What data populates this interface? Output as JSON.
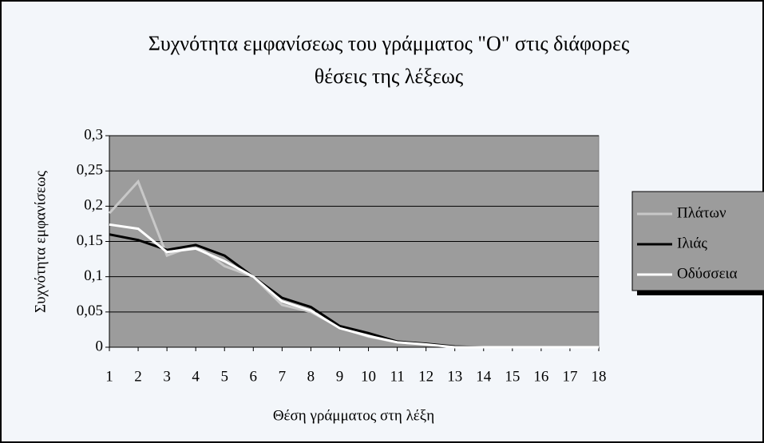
{
  "chart_data": {
    "type": "line",
    "title": [
      "Συχνότητα εμφανίσεως του γράμματος \"Ο\" στις διάφορες",
      "θέσεις της λέξεως"
    ],
    "x_label": "Θέση γράμματος στη λέξη",
    "y_label": "Συχνότητα εμφανίσεως",
    "categories": [
      "1",
      "2",
      "3",
      "4",
      "5",
      "6",
      "7",
      "8",
      "9",
      "10",
      "11",
      "12",
      "13",
      "14",
      "15",
      "16",
      "17",
      "18"
    ],
    "series": [
      {
        "name": "Πλάτων",
        "color": "#c8c8c8",
        "values": [
          0.19,
          0.235,
          0.13,
          0.145,
          0.115,
          0.1,
          0.06,
          0.05,
          0.028,
          0.015,
          0.007,
          0.005,
          0,
          0,
          0,
          0,
          0,
          0
        ]
      },
      {
        "name": "Ιλιάς",
        "color": "#000000",
        "values": [
          0.16,
          0.152,
          0.138,
          0.145,
          0.13,
          0.1,
          0.07,
          0.057,
          0.03,
          0.02,
          0.008,
          0.005,
          0.001,
          0,
          0,
          0,
          0,
          0
        ]
      },
      {
        "name": "Οδύσσεια",
        "color": "#ffffff",
        "values": [
          0.174,
          0.168,
          0.135,
          0.14,
          0.122,
          0.1,
          0.065,
          0.052,
          0.027,
          0.016,
          0.007,
          0.004,
          0,
          0,
          0,
          0,
          0,
          0
        ]
      }
    ],
    "ylim": [
      0,
      0.3
    ],
    "yticks": [
      0,
      {
        "value": 0.05,
        "label": "0,05"
      },
      {
        "value": 0.1,
        "label": "0,1"
      },
      {
        "value": 0.15,
        "label": "0,15"
      },
      {
        "value": 0.2,
        "label": "0,2"
      },
      {
        "value": 0.25,
        "label": "0,25"
      },
      {
        "value": 0.3,
        "label": "0,3"
      }
    ],
    "grid": true,
    "legend": "right",
    "plot_color": "#9c9c9c"
  }
}
